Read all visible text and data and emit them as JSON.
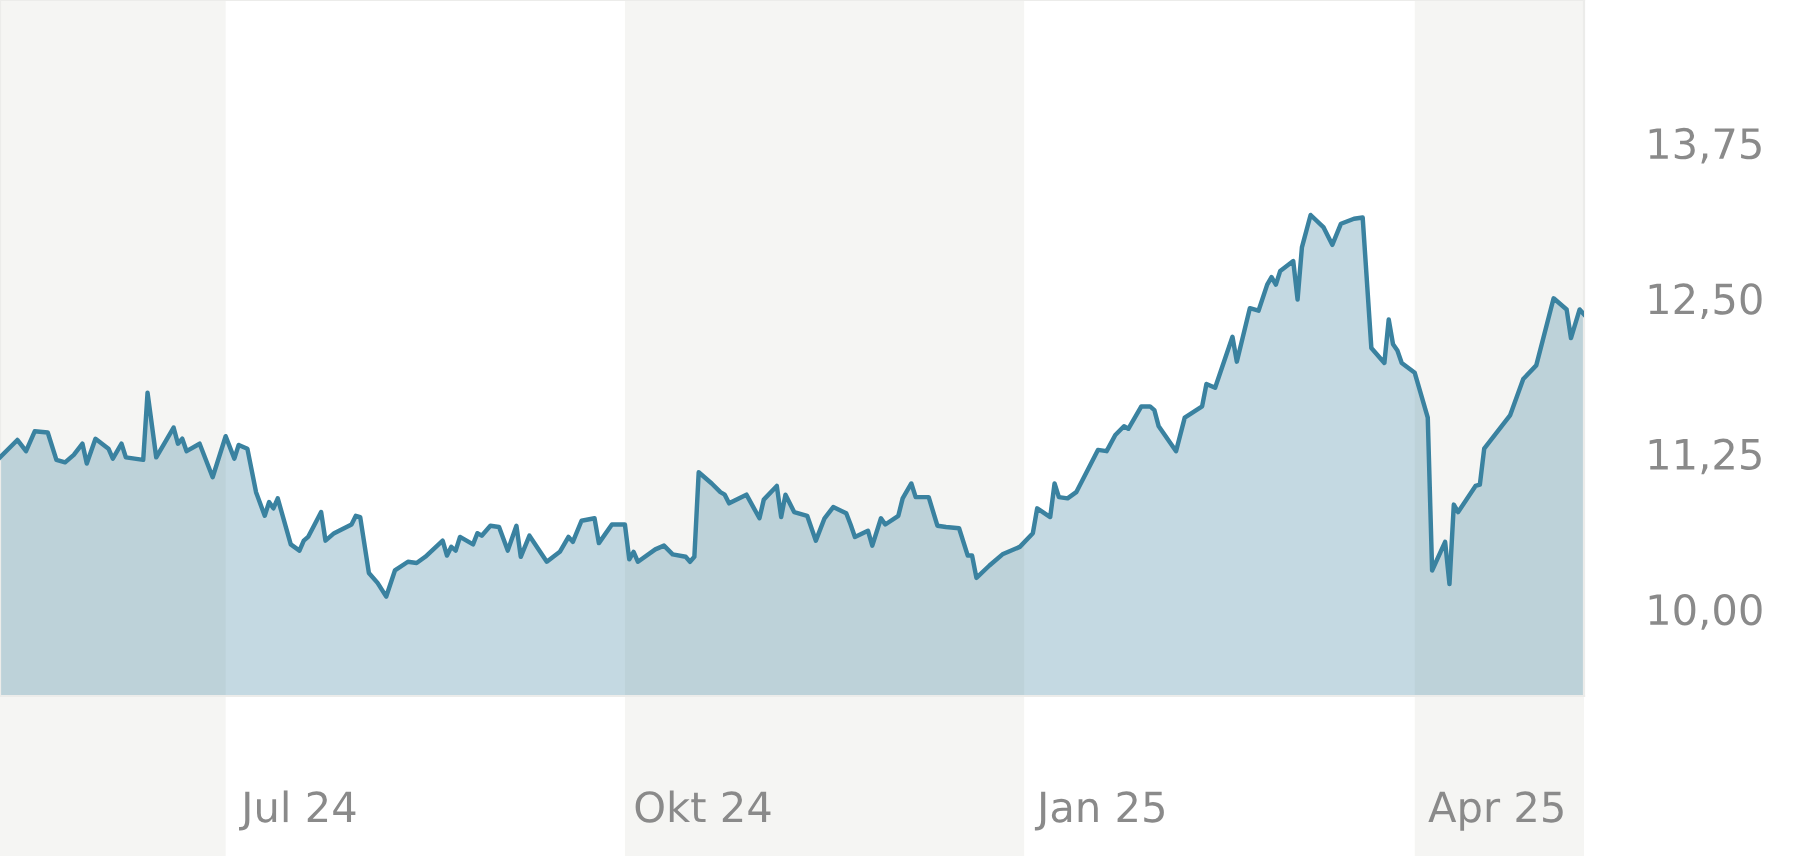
{
  "chart_data": {
    "type": "area",
    "x": [
      "2024-05-10",
      "2024-05-14",
      "2024-05-16",
      "2024-05-18",
      "2024-05-21",
      "2024-05-23",
      "2024-05-25",
      "2024-05-27",
      "2024-05-29",
      "2024-05-30",
      "2024-06-01",
      "2024-06-04",
      "2024-06-05",
      "2024-06-07",
      "2024-06-08",
      "2024-06-12",
      "2024-06-13",
      "2024-06-15",
      "2024-06-19",
      "2024-06-20",
      "2024-06-21",
      "2024-06-22",
      "2024-06-25",
      "2024-06-28",
      "2024-07-01",
      "2024-07-03",
      "2024-07-04",
      "2024-07-06",
      "2024-07-08",
      "2024-07-10",
      "2024-07-11",
      "2024-07-12",
      "2024-07-13",
      "2024-07-16",
      "2024-07-18",
      "2024-07-19",
      "2024-07-20",
      "2024-07-23",
      "2024-07-24",
      "2024-07-26",
      "2024-07-30",
      "2024-07-31",
      "2024-08-01",
      "2024-08-03",
      "2024-08-05",
      "2024-08-07",
      "2024-08-09",
      "2024-08-12",
      "2024-08-14",
      "2024-08-16",
      "2024-08-20",
      "2024-08-21",
      "2024-08-22",
      "2024-08-23",
      "2024-08-24",
      "2024-08-27",
      "2024-08-28",
      "2024-08-29",
      "2024-08-31",
      "2024-09-02",
      "2024-09-04",
      "2024-09-06",
      "2024-09-07",
      "2024-09-09",
      "2024-09-13",
      "2024-09-16",
      "2024-09-18",
      "2024-09-19",
      "2024-09-21",
      "2024-09-24",
      "2024-09-25",
      "2024-09-28",
      "2024-10-01",
      "2024-10-02",
      "2024-10-03",
      "2024-10-04",
      "2024-10-08",
      "2024-10-10",
      "2024-10-12",
      "2024-10-15",
      "2024-10-16",
      "2024-10-17",
      "2024-10-18",
      "2024-10-21",
      "2024-10-23",
      "2024-10-24",
      "2024-10-25",
      "2024-10-29",
      "2024-11-01",
      "2024-11-02",
      "2024-11-05",
      "2024-11-06",
      "2024-11-07",
      "2024-11-09",
      "2024-11-12",
      "2024-11-14",
      "2024-11-16",
      "2024-11-18",
      "2024-11-21",
      "2024-11-22",
      "2024-11-23",
      "2024-11-26",
      "2024-11-27",
      "2024-11-29",
      "2024-11-30",
      "2024-12-03",
      "2024-12-04",
      "2024-12-06",
      "2024-12-07",
      "2024-12-10",
      "2024-12-12",
      "2024-12-14",
      "2024-12-17",
      "2024-12-19",
      "2024-12-20",
      "2024-12-21",
      "2024-12-24",
      "2024-12-27",
      "2024-12-31",
      "2025-01-03",
      "2025-01-04",
      "2025-01-07",
      "2025-01-08",
      "2025-01-09",
      "2025-01-11",
      "2025-01-13",
      "2025-01-18",
      "2025-01-20",
      "2025-01-22",
      "2025-01-24",
      "2025-01-25",
      "2025-01-28",
      "2025-01-30",
      "2025-01-31",
      "2025-02-01",
      "2025-02-05",
      "2025-02-07",
      "2025-02-11",
      "2025-02-12",
      "2025-02-14",
      "2025-02-18",
      "2025-02-19",
      "2025-02-22",
      "2025-02-24",
      "2025-02-26",
      "2025-02-27",
      "2025-02-28",
      "2025-03-01",
      "2025-03-04",
      "2025-03-05",
      "2025-03-06",
      "2025-03-08",
      "2025-03-11",
      "2025-03-13",
      "2025-03-15",
      "2025-03-18",
      "2025-03-20",
      "2025-03-22",
      "2025-03-25",
      "2025-03-26",
      "2025-03-27",
      "2025-03-28",
      "2025-03-29",
      "2025-04-01",
      "2025-04-04",
      "2025-04-05",
      "2025-04-08",
      "2025-04-09",
      "2025-04-10",
      "2025-04-11",
      "2025-04-15",
      "2025-04-16",
      "2025-04-17",
      "2025-04-23",
      "2025-04-26",
      "2025-04-29",
      "2025-05-03",
      "2025-05-06",
      "2025-05-07",
      "2025-05-09",
      "2025-05-10"
    ],
    "series": [
      {
        "color": "#3a82a0",
        "values": [
          11.22,
          11.36,
          11.27,
          11.43,
          11.42,
          11.2,
          11.18,
          11.24,
          11.33,
          11.17,
          11.37,
          11.29,
          11.21,
          11.33,
          11.22,
          11.2,
          11.74,
          11.22,
          11.46,
          11.33,
          11.37,
          11.27,
          11.33,
          11.06,
          11.39,
          11.21,
          11.32,
          11.29,
          10.94,
          10.75,
          10.86,
          10.81,
          10.89,
          10.52,
          10.47,
          10.55,
          10.58,
          10.78,
          10.55,
          10.61,
          10.68,
          10.75,
          10.74,
          10.29,
          10.21,
          10.1,
          10.31,
          10.38,
          10.37,
          10.42,
          10.55,
          10.43,
          10.5,
          10.47,
          10.58,
          10.52,
          10.61,
          10.59,
          10.67,
          10.66,
          10.47,
          10.67,
          10.42,
          10.59,
          10.38,
          10.46,
          10.58,
          10.54,
          10.71,
          10.73,
          10.53,
          10.68,
          10.68,
          10.4,
          10.46,
          10.38,
          10.48,
          10.51,
          10.44,
          10.42,
          10.38,
          10.42,
          11.1,
          11.01,
          10.94,
          10.92,
          10.85,
          10.92,
          10.73,
          10.88,
          10.99,
          10.74,
          10.92,
          10.78,
          10.75,
          10.55,
          10.73,
          10.82,
          10.77,
          10.68,
          10.58,
          10.63,
          10.51,
          10.73,
          10.68,
          10.75,
          10.89,
          11.01,
          10.9,
          10.9,
          10.67,
          10.66,
          10.65,
          10.43,
          10.43,
          10.25,
          10.35,
          10.44,
          10.5,
          10.61,
          10.81,
          10.74,
          11.01,
          10.9,
          10.89,
          10.94,
          11.28,
          11.27,
          11.4,
          11.47,
          11.45,
          11.63,
          11.63,
          11.6,
          11.47,
          11.27,
          11.54,
          11.63,
          11.81,
          11.78,
          12.19,
          11.99,
          12.42,
          12.4,
          12.61,
          12.67,
          12.61,
          12.72,
          12.8,
          12.49,
          12.91,
          13.17,
          13.07,
          12.93,
          13.1,
          13.14,
          13.15,
          12.1,
          11.98,
          12.33,
          12.13,
          12.08,
          11.98,
          11.9,
          11.54,
          10.31,
          10.54,
          10.2,
          10.84,
          10.78,
          10.99,
          11.0,
          11.29,
          11.56,
          11.85,
          11.96,
          12.5,
          12.41,
          12.18,
          12.41,
          12.37
        ]
      }
    ],
    "xlim": [
      "2024-05-10",
      "2025-05-10"
    ],
    "xticks": [
      {
        "value": "2024-07-18",
        "label": "Jul 24"
      },
      {
        "value": "2024-10-19",
        "label": "Okt 24"
      },
      {
        "value": "2025-01-19",
        "label": "Jan 25"
      },
      {
        "value": "2025-04-20",
        "label": "Apr 25"
      }
    ],
    "ylim": [
      9.3,
      14.9
    ],
    "yticks": [
      {
        "value": 10.0,
        "label": "10,00"
      },
      {
        "value": 11.25,
        "label": "11,25"
      },
      {
        "value": 12.5,
        "label": "12,50"
      },
      {
        "value": 13.75,
        "label": "13,75"
      }
    ],
    "bands": [
      {
        "axis": "x",
        "from": "2024-05-10",
        "to": "2024-07-01",
        "color": "#f5f5f3"
      },
      {
        "axis": "x",
        "from": "2024-10-01",
        "to": "2025-01-01",
        "color": "#f5f5f3"
      },
      {
        "axis": "x",
        "from": "2025-04-01",
        "to": "2025-05-10",
        "color": "#f5f5f3"
      }
    ],
    "grid": false
  }
}
